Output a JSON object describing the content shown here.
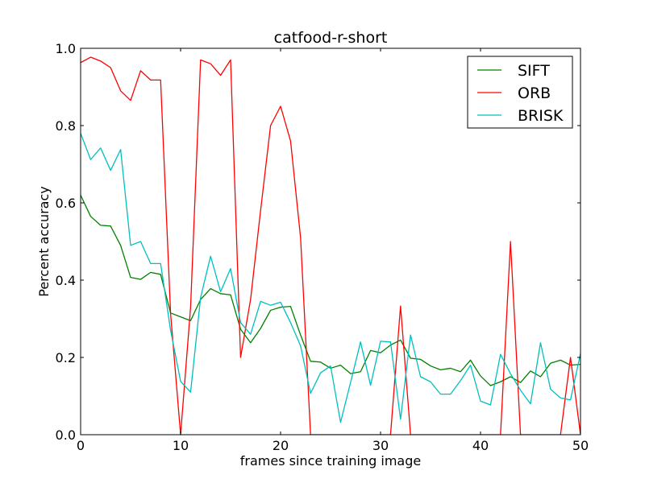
{
  "chart_data": {
    "type": "line",
    "title": "catfood-r-short",
    "xlabel": "frames since training image",
    "ylabel": "Percent accuracy",
    "xlim": [
      0,
      50
    ],
    "ylim": [
      0,
      1.0
    ],
    "xticks": [
      0,
      10,
      20,
      30,
      40,
      50
    ],
    "yticks": [
      0.0,
      0.2,
      0.4,
      0.6,
      0.8,
      1.0
    ],
    "xtick_labels": [
      "0",
      "10",
      "20",
      "30",
      "40",
      "50"
    ],
    "ytick_labels": [
      "0.0",
      "0.2",
      "0.4",
      "0.6",
      "0.8",
      "1.0"
    ],
    "grid": false,
    "legend_position": "top-right",
    "x": [
      0,
      1,
      2,
      3,
      4,
      5,
      6,
      7,
      8,
      9,
      10,
      11,
      12,
      13,
      14,
      15,
      16,
      17,
      18,
      19,
      20,
      21,
      22,
      23,
      24,
      25,
      26,
      27,
      28,
      29,
      30,
      31,
      32,
      33,
      34,
      35,
      36,
      37,
      38,
      39,
      40,
      41,
      42,
      43,
      44,
      45,
      46,
      47,
      48,
      49,
      50
    ],
    "series": [
      {
        "name": "SIFT",
        "color": "#008000",
        "values": [
          0.62,
          0.565,
          0.542,
          0.54,
          0.49,
          0.407,
          0.402,
          0.42,
          0.415,
          0.315,
          0.305,
          0.295,
          0.35,
          0.378,
          0.365,
          0.362,
          0.273,
          0.238,
          0.275,
          0.322,
          0.33,
          0.332,
          0.258,
          0.19,
          0.188,
          0.172,
          0.18,
          0.158,
          0.163,
          0.218,
          0.212,
          0.232,
          0.245,
          0.198,
          0.195,
          0.178,
          0.168,
          0.172,
          0.163,
          0.193,
          0.152,
          0.127,
          0.137,
          0.15,
          0.135,
          0.165,
          0.15,
          0.185,
          0.193,
          0.18,
          0.182
        ]
      },
      {
        "name": "ORB",
        "color": "#ff0000",
        "values": [
          0.963,
          0.977,
          0.967,
          0.95,
          0.89,
          0.865,
          0.942,
          0.918,
          0.918,
          0.313,
          0.0,
          0.33,
          0.97,
          0.96,
          0.93,
          0.97,
          0.2,
          0.35,
          0.58,
          0.8,
          0.85,
          0.76,
          0.51,
          0.0,
          0.0,
          0.0,
          0.0,
          0.0,
          0.0,
          0.0,
          0.0,
          0.0,
          0.333,
          0.0,
          0.0,
          0.0,
          0.0,
          0.0,
          0.0,
          0.0,
          0.0,
          0.0,
          0.0,
          0.5,
          0.0,
          0.0,
          0.0,
          0.0,
          0.0,
          0.2,
          0.0
        ]
      },
      {
        "name": "BRISK",
        "color": "#00bfbf",
        "values": [
          0.78,
          0.712,
          0.742,
          0.684,
          0.738,
          0.49,
          0.5,
          0.443,
          0.443,
          0.27,
          0.138,
          0.11,
          0.355,
          0.462,
          0.37,
          0.43,
          0.29,
          0.26,
          0.345,
          0.335,
          0.343,
          0.29,
          0.23,
          0.107,
          0.16,
          0.178,
          0.032,
          0.135,
          0.24,
          0.128,
          0.242,
          0.24,
          0.04,
          0.258,
          0.15,
          0.137,
          0.105,
          0.105,
          0.14,
          0.18,
          0.087,
          0.077,
          0.208,
          0.158,
          0.115,
          0.08,
          0.238,
          0.118,
          0.095,
          0.09,
          0.21
        ]
      }
    ]
  }
}
